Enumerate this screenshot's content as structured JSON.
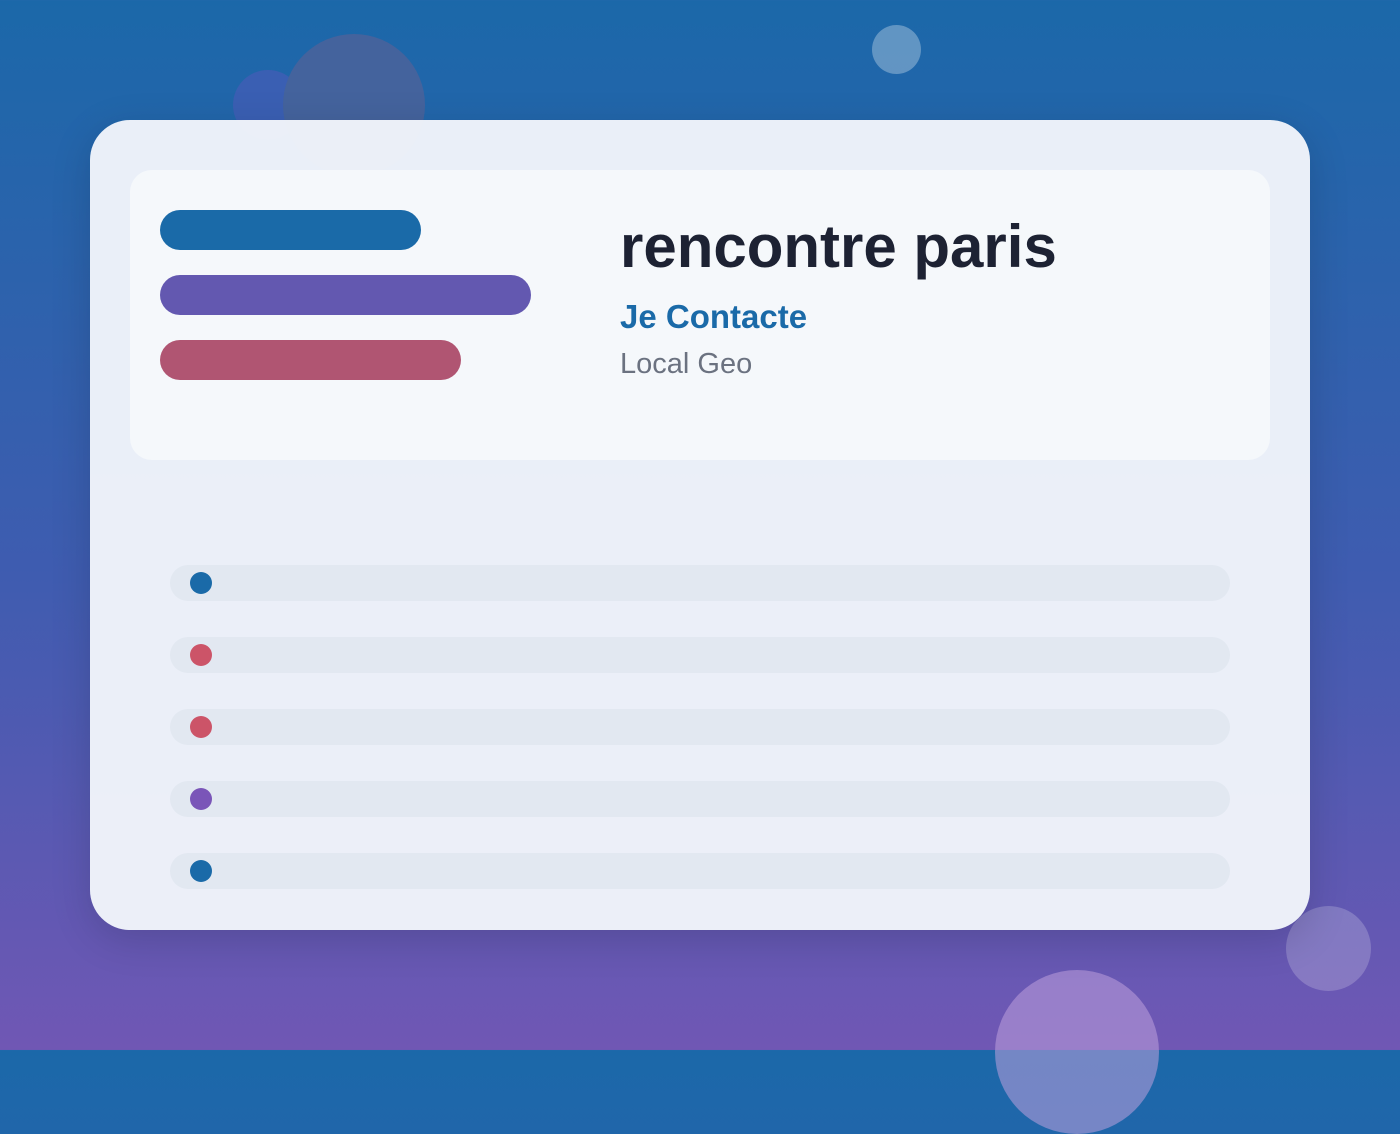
{
  "header": {
    "title": "rencontre paris",
    "subtitle": "Je Contacte",
    "tag": "Local Geo"
  }
}
